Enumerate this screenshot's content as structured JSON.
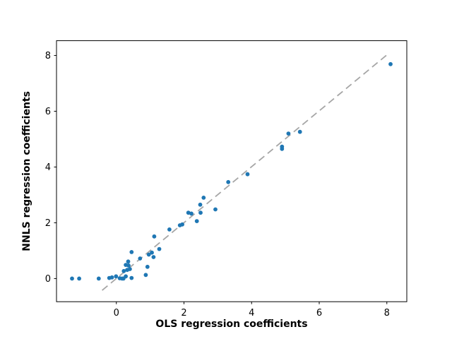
{
  "chart_data": {
    "type": "scatter",
    "title": "",
    "xlabel": "OLS regression coefficients",
    "ylabel": "NNLS regression coefficients",
    "xlim": [
      -1.77,
      8.59
    ],
    "ylim": [
      -0.83,
      8.53
    ],
    "x_ticks": [
      "0",
      "2",
      "4",
      "6",
      "8"
    ],
    "x_tick_values": [
      0,
      2,
      4,
      6,
      8
    ],
    "y_ticks": [
      "0",
      "2",
      "4",
      "6",
      "8"
    ],
    "y_tick_values": [
      0,
      2,
      4,
      6,
      8
    ],
    "grid": false,
    "legend_position": "none",
    "background_color": "#ffffff",
    "marker_color": "#1f77b4",
    "marker_shape": "circle",
    "axis_color": "#000000",
    "reference_line": {
      "description": "identity line y = x",
      "style": "dashed",
      "color": "#a6a6a6",
      "x_start": -0.42,
      "y_start": -0.42,
      "x_end": 8.08,
      "y_end": 8.1
    },
    "series": [
      {
        "name": "regression coefficients",
        "points": [
          [
            -1.31,
            0.0
          ],
          [
            -1.1,
            0.0
          ],
          [
            -0.52,
            0.0
          ],
          [
            -0.21,
            0.02
          ],
          [
            -0.13,
            0.04
          ],
          [
            -0.01,
            0.08
          ],
          [
            0.1,
            0.01
          ],
          [
            0.17,
            0.0
          ],
          [
            0.21,
            0.0
          ],
          [
            0.28,
            0.08
          ],
          [
            0.45,
            0.02
          ],
          [
            0.22,
            0.27
          ],
          [
            0.32,
            0.31
          ],
          [
            0.4,
            0.34
          ],
          [
            0.28,
            0.49
          ],
          [
            0.36,
            0.47
          ],
          [
            0.35,
            0.61
          ],
          [
            0.45,
            0.95
          ],
          [
            0.7,
            0.72
          ],
          [
            0.87,
            0.13
          ],
          [
            0.92,
            0.42
          ],
          [
            0.96,
            0.86
          ],
          [
            1.05,
            0.93
          ],
          [
            1.1,
            0.77
          ],
          [
            1.27,
            1.06
          ],
          [
            1.12,
            1.51
          ],
          [
            1.57,
            1.76
          ],
          [
            1.88,
            1.91
          ],
          [
            1.95,
            1.94
          ],
          [
            2.13,
            2.36
          ],
          [
            2.22,
            2.33
          ],
          [
            2.49,
            2.36
          ],
          [
            2.38,
            2.06
          ],
          [
            2.48,
            2.65
          ],
          [
            2.58,
            2.9
          ],
          [
            2.93,
            2.48
          ],
          [
            3.31,
            3.46
          ],
          [
            3.88,
            3.74
          ],
          [
            4.9,
            4.73
          ],
          [
            4.9,
            4.65
          ],
          [
            5.09,
            5.2
          ],
          [
            5.43,
            5.26
          ],
          [
            8.11,
            7.69
          ]
        ]
      }
    ]
  }
}
